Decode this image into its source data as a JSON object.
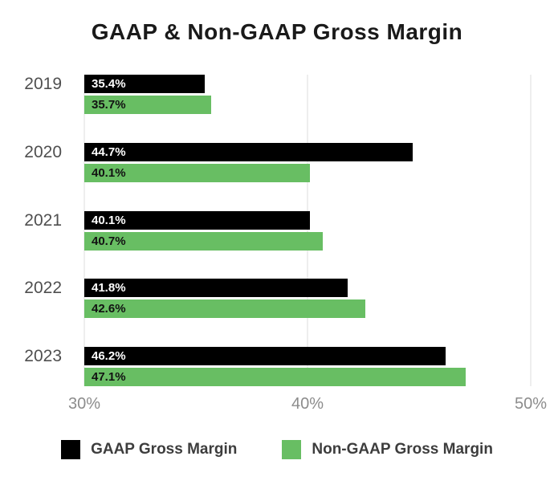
{
  "title": "GAAP & Non-GAAP Gross Margin",
  "chart_data": {
    "type": "bar",
    "orientation": "horizontal",
    "title": "GAAP & Non-GAAP Gross Margin",
    "categories": [
      "2019",
      "2020",
      "2021",
      "2022",
      "2023"
    ],
    "series": [
      {
        "name": "GAAP Gross Margin",
        "color": "#000000",
        "label_color": "#ffffff",
        "values": [
          35.4,
          44.7,
          40.1,
          41.8,
          46.2
        ],
        "labels": [
          "35.4%",
          "44.7%",
          "40.1%",
          "41.8%",
          "46.2%"
        ]
      },
      {
        "name": "Non-GAAP Gross Margin",
        "color": "#68be63",
        "label_color": "#121212",
        "values": [
          35.7,
          40.1,
          40.7,
          42.6,
          47.1
        ],
        "labels": [
          "35.7%",
          "40.1%",
          "40.7%",
          "42.6%",
          "47.1%"
        ]
      }
    ],
    "xlim": [
      30,
      50
    ],
    "x_ticks": [
      {
        "value": 30,
        "label": "30%"
      },
      {
        "value": 40,
        "label": "40%"
      },
      {
        "value": 50,
        "label": "50%"
      }
    ],
    "grid": true,
    "gridline_color": "#dcdcdc",
    "legend_position": "bottom"
  },
  "legend": {
    "items": [
      {
        "label": "GAAP Gross Margin",
        "color": "#000000"
      },
      {
        "label": "Non-GAAP Gross Margin",
        "color": "#68be63"
      }
    ]
  }
}
